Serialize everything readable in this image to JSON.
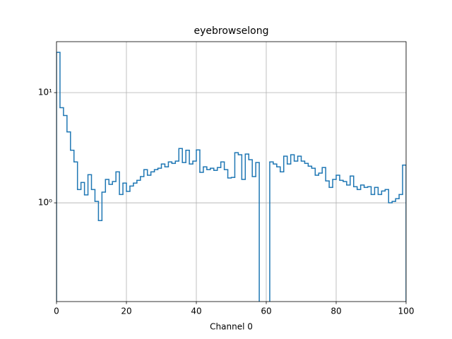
{
  "chart_data": {
    "type": "histogram",
    "title": "eyebrowselong",
    "xlabel": "Channel 0",
    "bins": [
      0,
      1,
      2,
      3,
      4,
      5,
      6,
      7,
      8,
      9,
      10,
      11,
      12,
      13,
      14,
      15,
      16,
      17,
      18,
      19,
      20,
      21,
      22,
      23,
      24,
      25,
      26,
      27,
      28,
      29,
      30,
      31,
      32,
      33,
      34,
      35,
      36,
      37,
      38,
      39,
      40,
      41,
      42,
      43,
      44,
      45,
      46,
      47,
      48,
      49,
      50,
      51,
      52,
      53,
      54,
      55,
      56,
      57,
      58,
      59,
      60,
      61,
      62,
      63,
      64,
      65,
      66,
      67,
      68,
      69,
      70,
      71,
      72,
      73,
      74,
      75,
      76,
      77,
      78,
      79,
      80,
      81,
      82,
      83,
      84,
      85,
      86,
      87,
      88,
      89,
      90,
      91,
      92,
      93,
      94,
      95,
      96,
      97,
      98,
      99,
      100
    ],
    "counts": [
      23.2,
      7.3,
      6.2,
      4.4,
      3.0,
      2.35,
      1.32,
      1.53,
      1.18,
      1.8,
      1.32,
      1.03,
      0.69,
      1.25,
      1.63,
      1.47,
      1.56,
      1.91,
      1.19,
      1.51,
      1.27,
      1.42,
      1.51,
      1.6,
      1.73,
      2.0,
      1.78,
      1.91,
      2.0,
      2.06,
      2.25,
      2.12,
      2.35,
      2.28,
      2.39,
      3.11,
      2.32,
      3.0,
      2.25,
      2.39,
      3.02,
      1.89,
      2.12,
      2.0,
      2.06,
      1.97,
      2.09,
      2.35,
      2.0,
      1.68,
      1.7,
      2.85,
      2.73,
      1.63,
      2.77,
      2.46,
      1.73,
      2.32,
      0,
      0,
      0,
      2.35,
      2.25,
      2.12,
      1.91,
      2.65,
      2.25,
      2.73,
      2.39,
      2.65,
      2.39,
      2.28,
      2.15,
      2.06,
      1.78,
      1.86,
      2.09,
      1.58,
      1.38,
      1.63,
      1.78,
      1.6,
      1.56,
      1.45,
      1.75,
      1.4,
      1.32,
      1.45,
      1.38,
      1.4,
      1.19,
      1.38,
      1.19,
      1.28,
      1.32,
      1.0,
      1.03,
      1.09,
      1.19,
      2.2
    ],
    "color": "#1f77b4",
    "log_y": true,
    "grid": true,
    "xlim": [
      0,
      100
    ],
    "xticks": [
      0,
      20,
      40,
      60,
      80,
      100
    ],
    "ylim": [
      0.127,
      29
    ],
    "yticks": [
      {
        "value": 1,
        "label": "10⁰"
      },
      {
        "value": 10,
        "label": "10¹"
      }
    ]
  }
}
